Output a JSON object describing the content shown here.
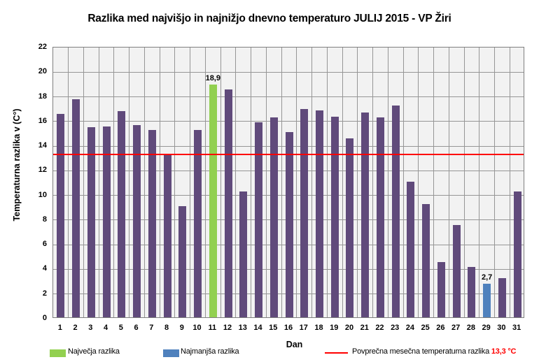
{
  "title": "Razlika med najvišjo in najnižjo dnevno temperaturo JULIJ 2015 - VP Žiri",
  "colors": {
    "bar_default": "#604A7B",
    "bar_max": "#92D050",
    "bar_min": "#4F81BD",
    "average_line": "#FF0000",
    "plot_background": "#F2F2F2",
    "gridline": "#969696",
    "plot_border": "#7F7F7F",
    "avg_value_text": "#FF0000"
  },
  "chart_data": {
    "type": "bar",
    "title": "Razlika med najvišjo in najnižjo dnevno temperaturo JULIJ 2015 - VP Žiri",
    "xlabel": "Dan",
    "ylabel": "Temperaturna razlika v (C°)",
    "ylim": [
      0,
      22
    ],
    "ytick_step": 2,
    "grid": true,
    "categories": [
      1,
      2,
      3,
      4,
      5,
      6,
      7,
      8,
      9,
      10,
      11,
      12,
      13,
      14,
      15,
      16,
      17,
      18,
      19,
      20,
      21,
      22,
      23,
      24,
      25,
      26,
      27,
      28,
      29,
      30,
      31
    ],
    "values": [
      16.5,
      17.7,
      15.4,
      15.5,
      16.7,
      15.6,
      15.2,
      13.2,
      9.0,
      15.2,
      18.9,
      18.5,
      10.2,
      15.8,
      16.2,
      15.0,
      16.9,
      16.8,
      16.3,
      14.5,
      16.6,
      16.2,
      17.2,
      11.0,
      9.2,
      4.5,
      7.5,
      4.1,
      2.7,
      3.2,
      10.2
    ],
    "max_bar": {
      "day": 11,
      "value": 18.9,
      "label": "18,9"
    },
    "min_bar": {
      "day": 29,
      "value": 2.7,
      "label": "2,7"
    },
    "average_line": {
      "value": 13.3,
      "label": "Povprečna mesečna temperaturna razlika",
      "value_label": "13,3 °C"
    },
    "legend_position": "bottom"
  },
  "legend": {
    "max_label": "Največja razlika",
    "min_label": "Najmanjša razlika",
    "avg_label": "Povprečna mesečna temperaturna razlika",
    "avg_value": "13,3 °C"
  }
}
